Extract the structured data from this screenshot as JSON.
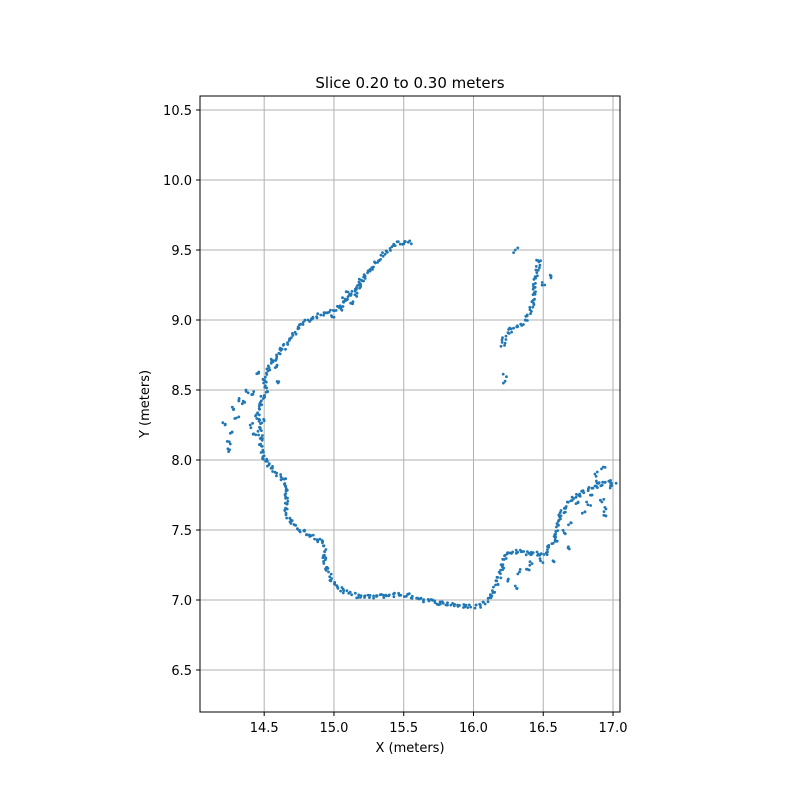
{
  "chart_data": {
    "type": "scatter",
    "title": "Slice 0.20 to 0.30 meters",
    "xlabel": "X (meters)",
    "ylabel": "Y (meters)",
    "xlim": [
      14.04,
      17.05
    ],
    "ylim": [
      6.2,
      10.6
    ],
    "xticks": [
      14.5,
      15.0,
      15.5,
      16.0,
      16.5,
      17.0
    ],
    "yticks": [
      6.5,
      7.0,
      7.5,
      8.0,
      8.5,
      9.0,
      9.5,
      10.0,
      10.5
    ],
    "xtick_labels": [
      "14.5",
      "15.0",
      "15.5",
      "16.0",
      "16.5",
      "17.0"
    ],
    "ytick_labels": [
      "6.5",
      "7.0",
      "7.5",
      "8.0",
      "8.5",
      "9.0",
      "9.5",
      "10.0",
      "10.5"
    ],
    "grid": true,
    "marker_color": "#1f77b4",
    "series": [
      {
        "name": "",
        "segments": [
          [
            [
              15.55,
              9.55
            ],
            [
              15.45,
              9.55
            ],
            [
              15.35,
              9.47
            ],
            [
              15.25,
              9.35
            ],
            [
              15.15,
              9.2
            ],
            [
              15.05,
              9.1
            ],
            [
              14.95,
              9.05
            ],
            [
              14.85,
              9.02
            ],
            [
              14.75,
              8.95
            ],
            [
              14.67,
              8.85
            ],
            [
              14.6,
              8.75
            ],
            [
              14.55,
              8.68
            ],
            [
              14.5,
              8.6
            ],
            [
              14.52,
              8.5
            ],
            [
              14.47,
              8.4
            ],
            [
              14.45,
              8.3
            ],
            [
              14.47,
              8.2
            ],
            [
              14.48,
              8.1
            ],
            [
              14.5,
              8.02
            ],
            [
              14.55,
              7.95
            ],
            [
              14.6,
              7.9
            ],
            [
              14.65,
              7.85
            ],
            [
              14.66,
              7.75
            ],
            [
              14.65,
              7.65
            ],
            [
              14.68,
              7.58
            ],
            [
              14.72,
              7.52
            ],
            [
              14.8,
              7.48
            ],
            [
              14.88,
              7.44
            ],
            [
              14.93,
              7.4
            ],
            [
              14.93,
              7.3
            ],
            [
              14.95,
              7.2
            ],
            [
              15.0,
              7.12
            ],
            [
              15.07,
              7.06
            ],
            [
              15.15,
              7.03
            ],
            [
              15.25,
              7.02
            ],
            [
              15.35,
              7.03
            ],
            [
              15.45,
              7.04
            ],
            [
              15.55,
              7.03
            ],
            [
              15.65,
              7.0
            ],
            [
              15.75,
              6.98
            ],
            [
              15.85,
              6.97
            ],
            [
              15.95,
              6.95
            ],
            [
              16.05,
              6.96
            ],
            [
              16.12,
              7.02
            ],
            [
              16.17,
              7.12
            ],
            [
              16.2,
              7.22
            ],
            [
              16.22,
              7.3
            ],
            [
              16.27,
              7.35
            ],
            [
              16.35,
              7.34
            ],
            [
              16.45,
              7.33
            ],
            [
              16.52,
              7.33
            ],
            [
              16.57,
              7.42
            ],
            [
              16.6,
              7.55
            ],
            [
              16.65,
              7.65
            ],
            [
              16.72,
              7.73
            ],
            [
              16.8,
              7.78
            ],
            [
              16.9,
              7.82
            ],
            [
              16.97,
              7.85
            ],
            [
              17.02,
              7.83
            ]
          ],
          [
            [
              16.47,
              9.44
            ],
            [
              16.45,
              9.3
            ],
            [
              16.43,
              9.15
            ],
            [
              16.4,
              9.05
            ],
            [
              16.35,
              8.97
            ],
            [
              16.3,
              8.95
            ],
            [
              16.25,
              8.92
            ],
            [
              16.22,
              8.88
            ],
            [
              16.21,
              8.8
            ]
          ],
          [
            [
              16.22,
              8.6
            ],
            [
              16.23,
              8.55
            ]
          ]
        ]
      }
    ],
    "scatter_clusters": [
      [
        [
          14.5,
          8.28
        ],
        [
          14.44,
          8.18
        ],
        [
          14.4,
          8.25
        ],
        [
          14.3,
          8.3
        ],
        [
          14.35,
          8.42
        ],
        [
          14.28,
          8.36
        ],
        [
          14.27,
          8.2
        ],
        [
          14.25,
          8.13
        ],
        [
          14.22,
          8.25
        ],
        [
          14.24,
          8.08
        ],
        [
          14.37,
          8.5
        ],
        [
          14.42,
          8.47
        ],
        [
          14.55,
          8.72
        ],
        [
          14.58,
          8.66
        ],
        [
          14.46,
          8.62
        ],
        [
          14.6,
          8.55
        ],
        [
          14.32,
          8.44
        ]
      ],
      [
        [
          15.05,
          9.08
        ],
        [
          15.1,
          9.2
        ],
        [
          15.12,
          9.12
        ],
        [
          15.18,
          9.25
        ],
        [
          15.0,
          9.02
        ],
        [
          15.08,
          9.15
        ],
        [
          15.15,
          9.18
        ],
        [
          15.2,
          9.28
        ]
      ],
      [
        [
          16.55,
          9.32
        ],
        [
          16.51,
          9.25
        ],
        [
          16.3,
          9.5
        ]
      ],
      [
        [
          16.62,
          7.6
        ],
        [
          16.7,
          7.55
        ],
        [
          16.75,
          7.7
        ],
        [
          16.85,
          7.75
        ],
        [
          16.88,
          7.85
        ],
        [
          16.92,
          7.7
        ],
        [
          16.95,
          7.65
        ],
        [
          16.98,
          7.8
        ],
        [
          16.93,
          7.95
        ],
        [
          16.87,
          7.9
        ],
        [
          16.82,
          7.68
        ],
        [
          16.78,
          7.62
        ],
        [
          16.65,
          7.48
        ],
        [
          16.6,
          7.42
        ],
        [
          16.68,
          7.38
        ],
        [
          16.57,
          7.28
        ],
        [
          16.95,
          7.6
        ]
      ],
      [
        [
          16.25,
          7.15
        ],
        [
          16.33,
          7.2
        ],
        [
          16.38,
          7.22
        ],
        [
          16.42,
          7.26
        ],
        [
          16.48,
          7.28
        ],
        [
          16.3,
          7.1
        ]
      ]
    ]
  }
}
